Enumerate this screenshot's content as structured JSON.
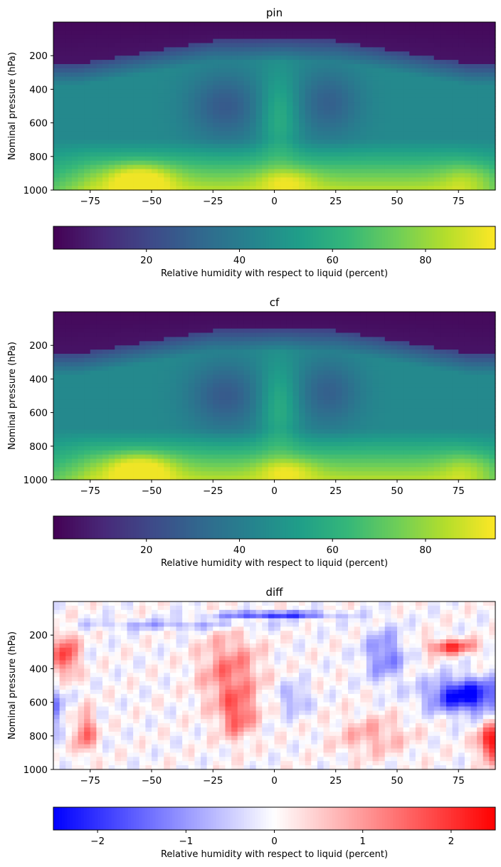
{
  "figure": {
    "background": "#ffffff"
  },
  "chart_data": [
    {
      "type": "heatmap",
      "title": "pin",
      "xlabel": "",
      "ylabel": "Nominal pressure (hPa)",
      "xlim": [
        -90,
        90
      ],
      "ylim": [
        1000,
        0
      ],
      "xticks": [
        -75,
        -50,
        -25,
        0,
        25,
        50,
        75
      ],
      "yticks": [
        200,
        400,
        600,
        800,
        1000
      ],
      "colormap": "viridis",
      "field": "relative_humidity_zonal_mean",
      "z_range": [
        0,
        95
      ],
      "colorbar": {
        "label": "Relative humidity with respect to liquid (percent)",
        "ticks": [
          20,
          40,
          60,
          80
        ],
        "range": [
          0,
          95
        ],
        "orientation": "horizontal"
      }
    },
    {
      "type": "heatmap",
      "title": "cf",
      "xlabel": "",
      "ylabel": "Nominal pressure (hPa)",
      "xlim": [
        -90,
        90
      ],
      "ylim": [
        1000,
        0
      ],
      "xticks": [
        -75,
        -50,
        -25,
        0,
        25,
        50,
        75
      ],
      "yticks": [
        200,
        400,
        600,
        800,
        1000
      ],
      "colormap": "viridis",
      "field": "relative_humidity_zonal_mean",
      "z_range": [
        0,
        95
      ],
      "colorbar": {
        "label": "Relative humidity with respect to liquid (percent)",
        "ticks": [
          20,
          40,
          60,
          80
        ],
        "range": [
          0,
          95
        ],
        "orientation": "horizontal"
      }
    },
    {
      "type": "heatmap",
      "title": "diff",
      "xlabel": "",
      "ylabel": "Nominal pressure (hPa)",
      "xlim": [
        -90,
        90
      ],
      "ylim": [
        1000,
        0
      ],
      "xticks": [
        -75,
        -50,
        -25,
        0,
        25,
        50,
        75
      ],
      "yticks": [
        200,
        400,
        600,
        800,
        1000
      ],
      "colormap": "bwr",
      "field": "relative_humidity_difference",
      "z_range": [
        -2.5,
        2.5
      ],
      "colorbar": {
        "label": "Relative humidity with respect to liquid (percent)",
        "ticks": [
          -2,
          -1,
          0,
          1,
          2
        ],
        "tick_labels": [
          "−2",
          "−1",
          "0",
          "1",
          "2"
        ],
        "range": [
          -2.5,
          2.5
        ],
        "orientation": "horizontal"
      }
    }
  ]
}
